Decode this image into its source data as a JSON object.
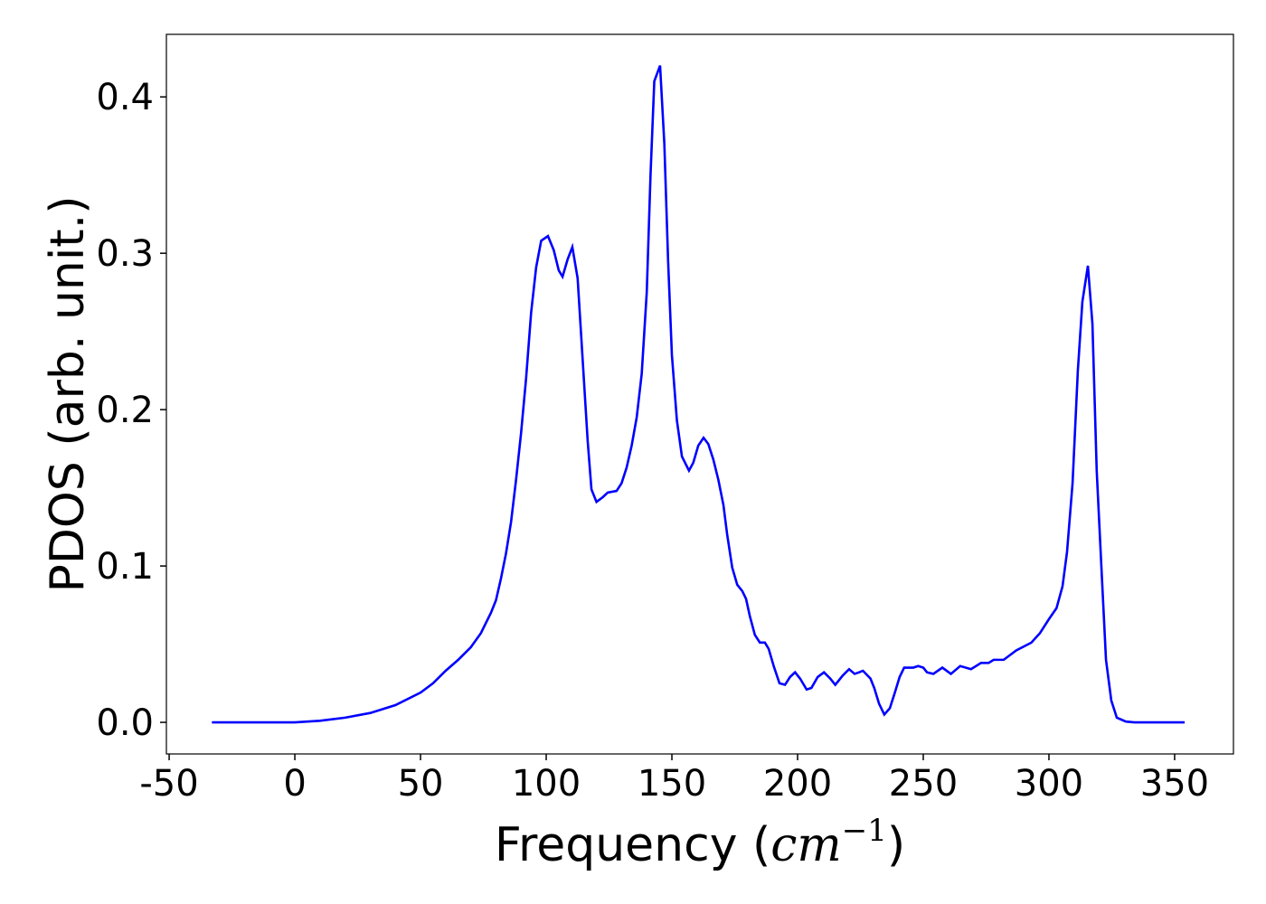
{
  "chart_data": {
    "type": "line",
    "xlabel": {
      "text": "Frequency (",
      "math": "cm",
      "sup": "−1",
      "close": ")"
    },
    "ylabel": "PDOS (arb. unit.)",
    "x": [
      -33,
      0,
      10,
      20,
      30,
      40,
      50,
      55,
      60,
      65,
      70,
      74,
      78,
      80,
      82,
      84,
      86,
      88,
      90,
      92,
      94,
      96,
      98,
      100.7,
      103,
      105,
      106.5,
      108.5,
      110.4,
      112.5,
      114.5,
      116.5,
      118,
      120,
      122.5,
      124.5,
      128,
      130,
      132,
      134,
      136,
      138,
      140,
      141.5,
      143,
      145.3,
      147,
      148.5,
      150,
      152,
      154,
      156.8,
      158.5,
      160.5,
      162.6,
      164.5,
      166.5,
      168.5,
      170.5,
      172,
      174,
      176,
      178,
      179.5,
      181,
      183,
      185,
      187,
      188.5,
      190.5,
      192.8,
      195,
      197,
      199,
      201,
      203.6,
      205.5,
      208,
      210.5,
      213,
      215,
      218,
      220.5,
      222.7,
      224.5,
      226,
      229,
      230.5,
      232.4,
      234.5,
      236.7,
      238.5,
      240.6,
      242.4,
      246,
      248,
      250,
      251.5,
      254,
      257.6,
      261,
      264.7,
      269,
      273,
      276,
      278,
      282,
      287,
      293,
      296.4,
      300,
      303,
      305.4,
      307.2,
      309.4,
      311.5,
      313.3,
      315.5,
      317.3,
      319,
      321,
      322.7,
      324.8,
      327,
      330.6,
      334,
      354
    ],
    "series": [
      {
        "name": "PDOS",
        "color": "#0000ff",
        "values": [
          0,
          0,
          0.001,
          0.003,
          0.006,
          0.011,
          0.019,
          0.025,
          0.033,
          0.04,
          0.048,
          0.057,
          0.07,
          0.078,
          0.092,
          0.108,
          0.128,
          0.155,
          0.185,
          0.22,
          0.262,
          0.291,
          0.308,
          0.311,
          0.302,
          0.289,
          0.285,
          0.296,
          0.304,
          0.284,
          0.232,
          0.18,
          0.149,
          0.141,
          0.144,
          0.147,
          0.148,
          0.153,
          0.163,
          0.177,
          0.195,
          0.223,
          0.275,
          0.35,
          0.41,
          0.42,
          0.37,
          0.295,
          0.235,
          0.193,
          0.17,
          0.161,
          0.166,
          0.177,
          0.182,
          0.178,
          0.168,
          0.155,
          0.139,
          0.12,
          0.099,
          0.088,
          0.084,
          0.079,
          0.068,
          0.056,
          0.051,
          0.051,
          0.047,
          0.036,
          0.025,
          0.024,
          0.029,
          0.032,
          0.028,
          0.021,
          0.022,
          0.029,
          0.032,
          0.028,
          0.024,
          0.03,
          0.034,
          0.031,
          0.032,
          0.033,
          0.028,
          0.022,
          0.012,
          0.005,
          0.009,
          0.018,
          0.029,
          0.035,
          0.035,
          0.036,
          0.035,
          0.032,
          0.031,
          0.035,
          0.031,
          0.036,
          0.034,
          0.038,
          0.038,
          0.04,
          0.04,
          0.046,
          0.051,
          0.057,
          0.066,
          0.073,
          0.087,
          0.109,
          0.153,
          0.225,
          0.269,
          0.292,
          0.255,
          0.161,
          0.095,
          0.04,
          0.014,
          0.003,
          0.0005,
          0,
          0
        ]
      }
    ],
    "xlim": [
      -51.1,
      373.4
    ],
    "ylim": [
      -0.0202,
      0.44
    ],
    "xticks": [
      -50,
      0,
      50,
      100,
      150,
      200,
      250,
      300,
      350
    ],
    "yticks": [
      {
        "value": 0,
        "label": "0.0"
      },
      0.1,
      0.2,
      0.3,
      0.4
    ]
  }
}
